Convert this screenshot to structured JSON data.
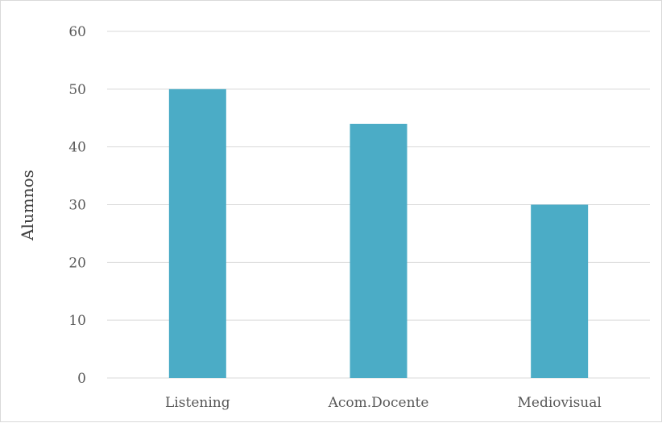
{
  "chart_data": {
    "type": "bar",
    "title": "",
    "xlabel": "",
    "ylabel": "Alumnos",
    "categories": [
      "Listening",
      "Acom.Docente",
      "Mediovisual"
    ],
    "values": [
      50,
      44,
      30
    ],
    "ylim": [
      0,
      60
    ],
    "yticks": [
      0,
      10,
      20,
      30,
      40,
      50,
      60
    ],
    "grid": true,
    "legend": "none",
    "bar_color": "#4bacc6",
    "grid_color": "#d9d9d9"
  }
}
